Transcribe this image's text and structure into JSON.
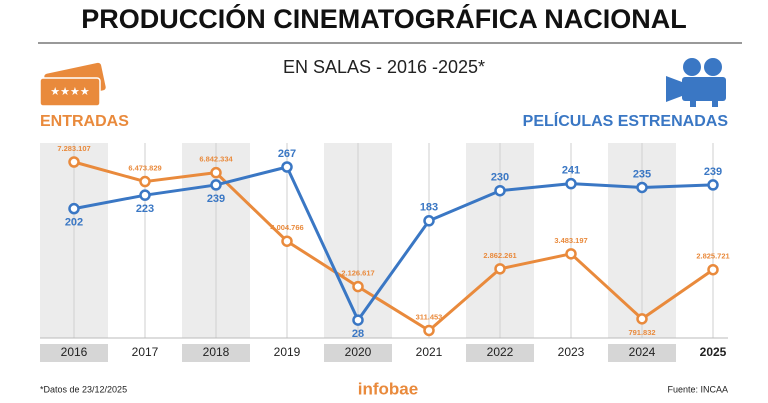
{
  "chart_data": {
    "type": "line",
    "title": "PRODUCCIÓN CINEMATOGRÁFICA NACIONAL",
    "subtitle": "EN SALAS - 2016 -2025*",
    "categories": [
      "2016",
      "2017",
      "2018",
      "2019",
      "2020",
      "2021",
      "2022",
      "2023",
      "2024",
      "2025"
    ],
    "series": [
      {
        "name": "ENTRADAS",
        "color": "#e98a3c",
        "values": [
          7283107,
          6473829,
          6842334,
          4004766,
          2126617,
          311453,
          2862261,
          3483197,
          791832,
          2825721
        ],
        "value_labels": [
          "7.283.107",
          "6.473.829",
          "6.842.334",
          "4.004.766",
          "2.126.617",
          "311.453",
          "2.862.261",
          "3.483.197",
          "791.832",
          "2.825.721"
        ]
      },
      {
        "name": "PELÍCULAS ESTRENADAS",
        "color": "#3a77c4",
        "axis": "y2",
        "values": [
          202,
          223,
          239,
          267,
          28,
          183,
          230,
          241,
          235,
          239
        ]
      }
    ],
    "footnote": "*Datos de 23/12/2025",
    "brand": "infobae",
    "source": "Fuente: INCAA"
  }
}
